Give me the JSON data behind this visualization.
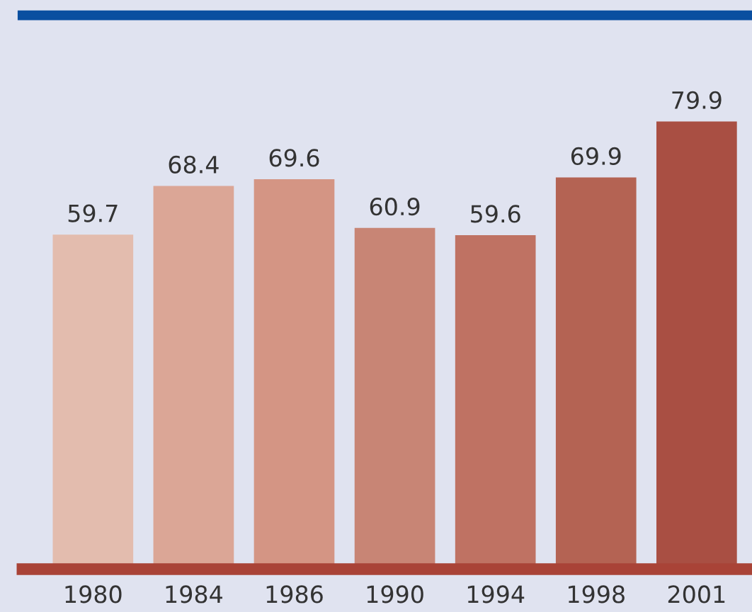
{
  "chart_data": {
    "type": "bar",
    "categories": [
      "1980",
      "1984",
      "1986",
      "1990",
      "1994",
      "1998",
      "2001"
    ],
    "values": [
      59.7,
      68.4,
      69.6,
      60.9,
      59.6,
      69.9,
      79.9
    ],
    "colors": [
      "#e3bcae",
      "#dba696",
      "#d49584",
      "#c88575",
      "#bf7263",
      "#b46353",
      "#a94f43"
    ],
    "data_labels": true,
    "grid": false,
    "legend": false
  }
}
